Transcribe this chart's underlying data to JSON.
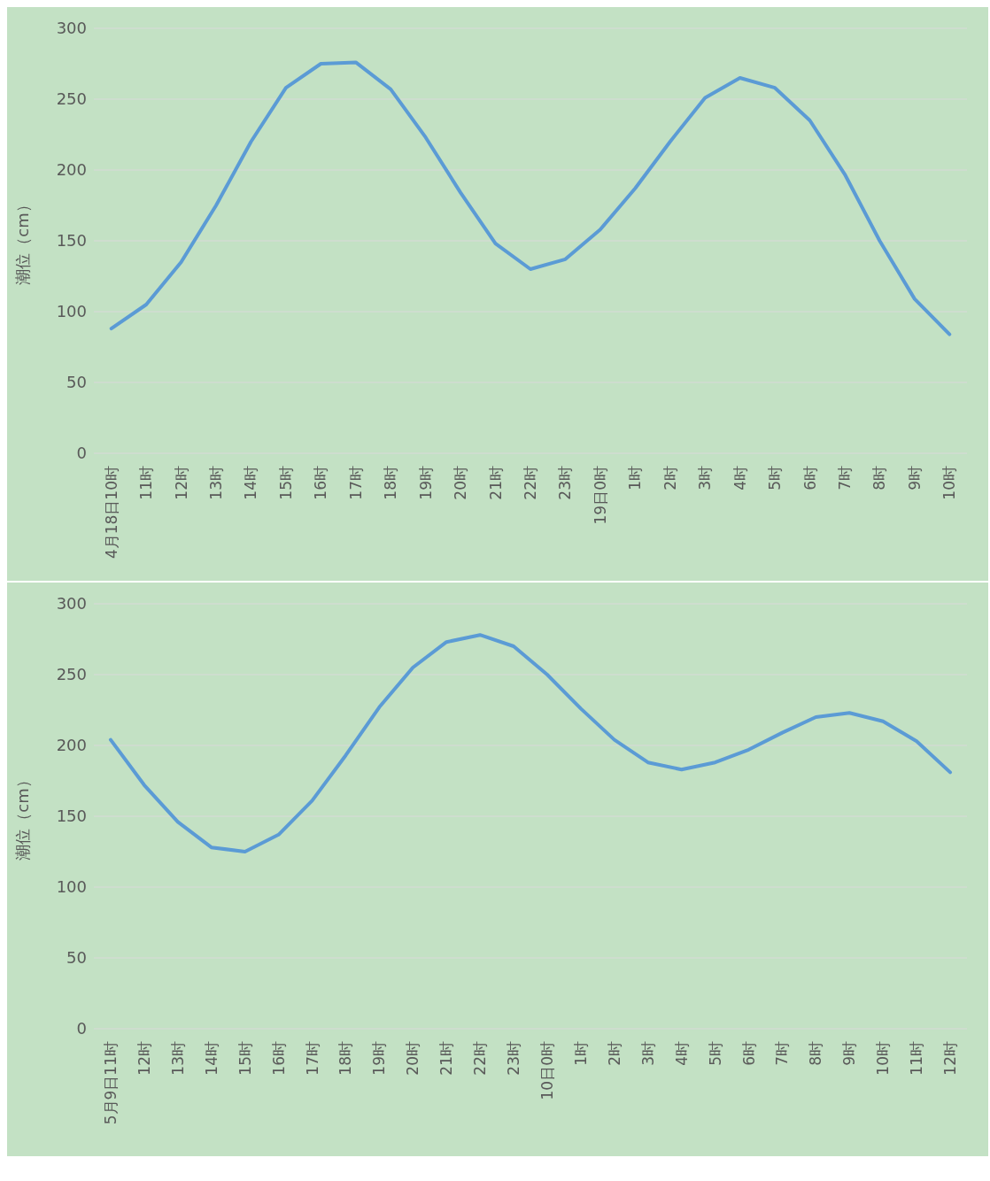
{
  "chart_data": [
    {
      "type": "line",
      "ylabel": "潮位（cm）",
      "categories": [
        "4月18日10时",
        "11时",
        "12时",
        "13时",
        "14时",
        "15时",
        "16时",
        "17时",
        "18时",
        "19时",
        "20时",
        "21时",
        "22时",
        "23时",
        "19日0时",
        "1时",
        "2时",
        "3时",
        "4时",
        "5时",
        "6时",
        "7时",
        "8时",
        "9时",
        "10时"
      ],
      "series": [
        {
          "color": "#5b9bd5",
          "values": [
            88,
            105,
            135,
            175,
            220,
            258,
            275,
            276,
            257,
            223,
            184,
            148,
            130,
            137,
            158,
            187,
            220,
            251,
            265,
            258,
            235,
            197,
            150,
            109,
            84
          ]
        }
      ],
      "ylim": [
        0,
        300
      ],
      "yticks": [
        0,
        50,
        100,
        150,
        200,
        250,
        300
      ],
      "grid": "y",
      "marker": "none",
      "line_style": "solid"
    },
    {
      "type": "line",
      "ylabel": "潮位（cm）",
      "categories": [
        "5月9日11时",
        "12时",
        "13时",
        "14时",
        "15时",
        "16时",
        "17时",
        "18时",
        "19时",
        "20时",
        "21时",
        "22时",
        "23时",
        "10日0时",
        "1时",
        "2时",
        "3时",
        "4时",
        "5时",
        "6时",
        "7时",
        "8时",
        "9时",
        "10时",
        "11时",
        "12时"
      ],
      "series": [
        {
          "color": "#5b9bd5",
          "values": [
            204,
            172,
            146,
            128,
            125,
            137,
            161,
            193,
            227,
            255,
            273,
            278,
            270,
            250,
            226,
            204,
            188,
            183,
            188,
            197,
            209,
            220,
            223,
            217,
            203,
            181
          ]
        }
      ],
      "ylim": [
        0,
        300
      ],
      "yticks": [
        0,
        50,
        100,
        150,
        200,
        250,
        300
      ],
      "grid": "y",
      "marker": "none",
      "line_style": "solid"
    }
  ]
}
